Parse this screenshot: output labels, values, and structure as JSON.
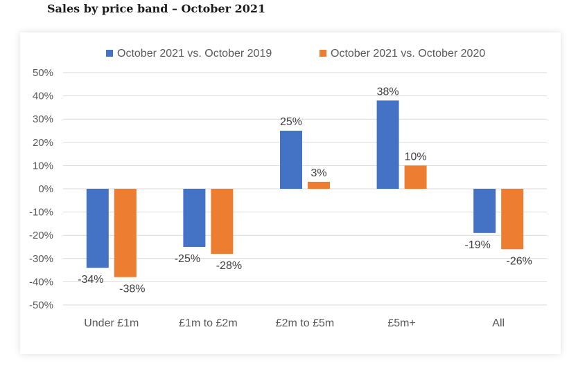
{
  "page": {
    "title": "Sales by price band – October 2021"
  },
  "chart_data": {
    "type": "bar",
    "title": "Sales by price band – October 2021",
    "xlabel": "",
    "ylabel": "",
    "categories": [
      "Under £1m",
      "£1m to £2m",
      "£2m to £5m",
      "£5m+",
      "All"
    ],
    "series": [
      {
        "name": "October 2021 vs. October 2019",
        "color": "#4472C4",
        "values": [
          -34,
          -25,
          25,
          38,
          -19
        ],
        "labels": [
          "-34%",
          "-25%",
          "25%",
          "38%",
          "-19%"
        ]
      },
      {
        "name": "October 2021 vs. October 2020",
        "color": "#ED7D31",
        "values": [
          -38,
          -28,
          3,
          10,
          -26
        ],
        "labels": [
          "-38%",
          "-28%",
          "3%",
          "10%",
          "-26%"
        ]
      }
    ],
    "ylim": [
      -50,
      50
    ],
    "yticks": [
      50,
      40,
      30,
      20,
      10,
      0,
      -10,
      -20,
      -30,
      -40,
      -50
    ],
    "ytick_labels": [
      "50%",
      "40%",
      "30%",
      "20%",
      "10%",
      "0%",
      "-10%",
      "-20%",
      "-30%",
      "-40%",
      "-50%"
    ],
    "grid": true,
    "legend_position": "top"
  }
}
